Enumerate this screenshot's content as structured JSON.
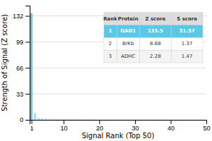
{
  "chart_data": {
    "type": "bar",
    "xlabel": "Signal Rank (Top 50)",
    "ylabel": "Strength of Signal (Z score)",
    "x": [
      1,
      2,
      3,
      4,
      5,
      6,
      7,
      8,
      9,
      10,
      11,
      12,
      13,
      14,
      15,
      16,
      17,
      18,
      19,
      20,
      21,
      22,
      23,
      24,
      25,
      26,
      27,
      28,
      29,
      30,
      31,
      32,
      33,
      34,
      35,
      36,
      37,
      38,
      39,
      40,
      41,
      42,
      43,
      44,
      45,
      46,
      47,
      48,
      49,
      50
    ],
    "values": [
      135.5,
      8.68,
      2.28,
      1.8,
      1.5,
      1.3,
      1.2,
      1.1,
      1.0,
      0.95,
      0.9,
      0.85,
      0.8,
      0.78,
      0.75,
      0.72,
      0.7,
      0.68,
      0.66,
      0.64,
      0.62,
      0.6,
      0.58,
      0.56,
      0.54,
      0.52,
      0.5,
      0.48,
      0.46,
      0.44,
      0.42,
      0.4,
      0.38,
      0.36,
      0.34,
      0.32,
      0.3,
      0.28,
      0.26,
      0.24,
      0.22,
      0.2,
      0.18,
      0.16,
      0.14,
      0.12,
      0.1,
      0.08,
      0.06,
      0.04
    ],
    "colors": [
      "#5bc8e8",
      "#a8d8ea",
      "#a8d8ea",
      "#a8d8ea",
      "#a8d8ea",
      "#a8d8ea",
      "#a8d8ea",
      "#a8d8ea",
      "#a8d8ea",
      "#a8d8ea",
      "#a8d8ea",
      "#a8d8ea",
      "#a8d8ea",
      "#a8d8ea",
      "#a8d8ea",
      "#a8d8ea",
      "#a8d8ea",
      "#a8d8ea",
      "#a8d8ea",
      "#a8d8ea",
      "#a8d8ea",
      "#a8d8ea",
      "#a8d8ea",
      "#a8d8ea",
      "#a8d8ea",
      "#a8d8ea",
      "#a8d8ea",
      "#a8d8ea",
      "#a8d8ea",
      "#a8d8ea",
      "#a8d8ea",
      "#a8d8ea",
      "#a8d8ea",
      "#a8d8ea",
      "#a8d8ea",
      "#a8d8ea",
      "#a8d8ea",
      "#a8d8ea",
      "#a8d8ea",
      "#a8d8ea",
      "#a8d8ea",
      "#a8d8ea",
      "#a8d8ea",
      "#a8d8ea",
      "#a8d8ea",
      "#a8d8ea",
      "#a8d8ea",
      "#a8d8ea",
      "#a8d8ea",
      "#a8d8ea"
    ],
    "xlim": [
      0.5,
      50
    ],
    "xticks": [
      1,
      10,
      20,
      30,
      40,
      50
    ],
    "ylim": [
      0,
      145
    ],
    "yticks": [
      0,
      33,
      66,
      99,
      132
    ],
    "grid": true,
    "table": [
      [
        "Rank",
        "Protein",
        "Z score",
        "S score"
      ],
      [
        "1",
        "GAD1",
        "135.5",
        "31.57"
      ],
      [
        "2",
        "BrKb",
        "8.68",
        "1.37"
      ],
      [
        "3",
        "ADHC",
        "2.28",
        "1.47"
      ]
    ]
  }
}
